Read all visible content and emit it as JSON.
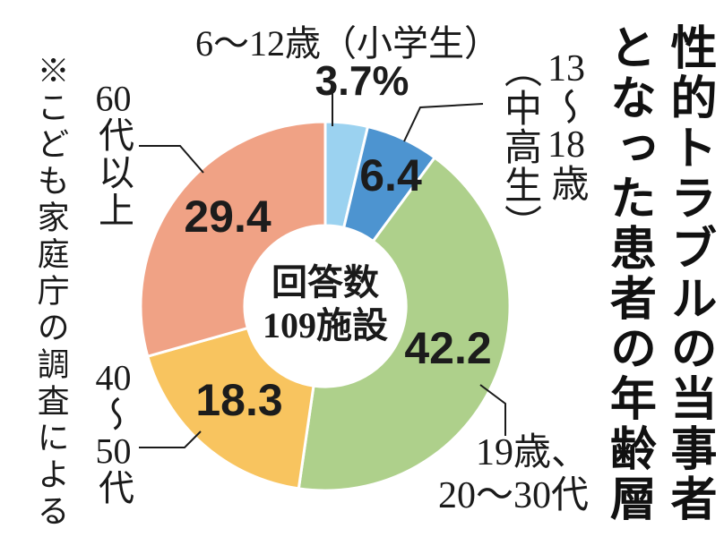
{
  "title": "性的トラブルの当事者となった患者の年齢層",
  "title_lines": [
    "性的トラブルの当事者",
    "となった患者の年齢層"
  ],
  "source_note": "※こども家庭庁の調査による",
  "center_label": {
    "line1": "回答数",
    "line2": "109施設"
  },
  "labels": {
    "age_6_12": "6～12歳（小学生）",
    "age_6_12_value": "3.7%",
    "age_13_18_col1": "13～18歳",
    "age_13_18_col2": "（中高生）",
    "age_13_18_value": "6.4",
    "age_19_30_line1": "19歳、",
    "age_19_30_line2": "20～30代",
    "age_19_30_value": "42.2",
    "age_40_50": "40～50代",
    "age_40_50_value": "18.3",
    "age_60": "60代以上",
    "age_60_value": "29.4"
  },
  "chart_data": {
    "type": "pie",
    "donut": true,
    "title": "性的トラブルの当事者となった患者の年齢層",
    "unit": "%",
    "center_text": "回答数109施設",
    "start_angle_deg": 0,
    "direction": "clockwise",
    "segments": [
      {
        "id": "6-12",
        "label": "6～12歳（小学生）",
        "value": 3.7,
        "color": "#9bd2f0"
      },
      {
        "id": "13-18",
        "label": "13～18歳（中高生）",
        "value": 6.4,
        "color": "#4d94d0"
      },
      {
        "id": "19-30",
        "label": "19歳、20～30代",
        "value": 42.2,
        "color": "#aed08b"
      },
      {
        "id": "40-50",
        "label": "40～50代",
        "value": 18.3,
        "color": "#f8c45f"
      },
      {
        "id": "60+",
        "label": "60代以上",
        "value": 29.4,
        "color": "#f0a285"
      }
    ]
  }
}
